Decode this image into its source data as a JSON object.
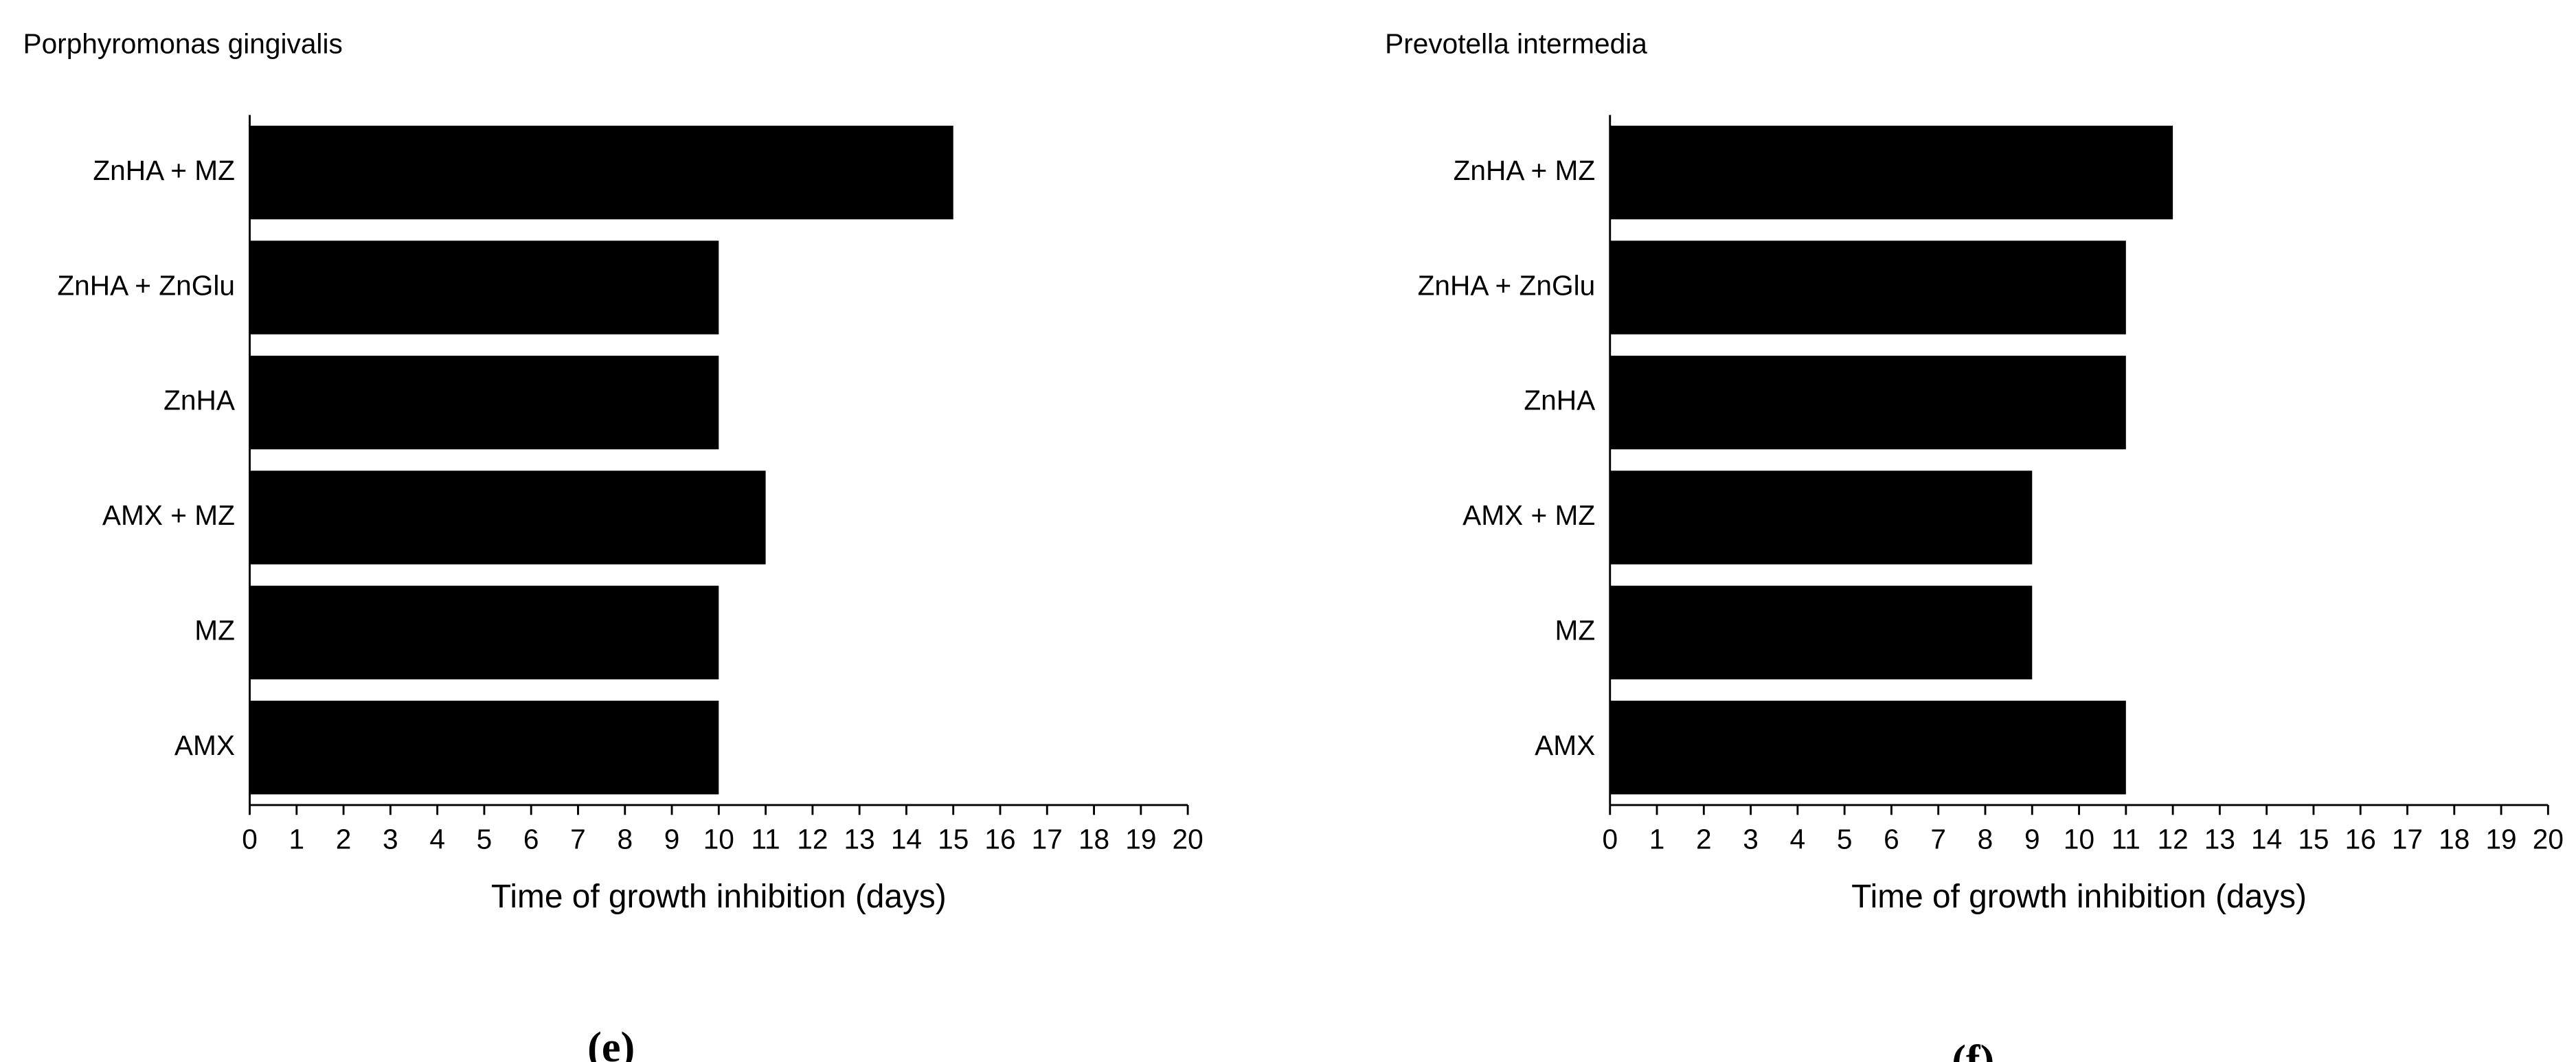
{
  "chart_data": [
    {
      "type": "barh",
      "title": "Porphyromonas gingivalis",
      "categories": [
        "ZnHA + MZ",
        "ZnHA + ZnGlu",
        "ZnHA",
        "AMX + MZ",
        "MZ",
        "AMX"
      ],
      "values": [
        15,
        10,
        10,
        11,
        10,
        10
      ],
      "color": "#000000",
      "x_label": "Time of growth inhibition (days)",
      "xlim": [
        0,
        20
      ],
      "xticks": [
        0,
        1,
        2,
        3,
        4,
        5,
        6,
        7,
        8,
        9,
        10,
        11,
        12,
        13,
        14,
        15,
        16,
        17,
        18,
        19,
        20
      ],
      "panel_label": "(e)"
    },
    {
      "type": "barh",
      "title": "Prevotella intermedia",
      "categories": [
        "ZnHA + MZ",
        "ZnHA + ZnGlu",
        "ZnHA",
        "AMX + MZ",
        "MZ",
        "AMX"
      ],
      "values": [
        12,
        11,
        11,
        9,
        9,
        11
      ],
      "color": "#000000",
      "x_label": "Time of growth inhibition (days)",
      "xlim": [
        0,
        20
      ],
      "xticks": [
        0,
        1,
        2,
        3,
        4,
        5,
        6,
        7,
        8,
        9,
        10,
        11,
        12,
        13,
        14,
        15,
        16,
        17,
        18,
        19,
        20
      ],
      "panel_label": "(f)"
    }
  ]
}
